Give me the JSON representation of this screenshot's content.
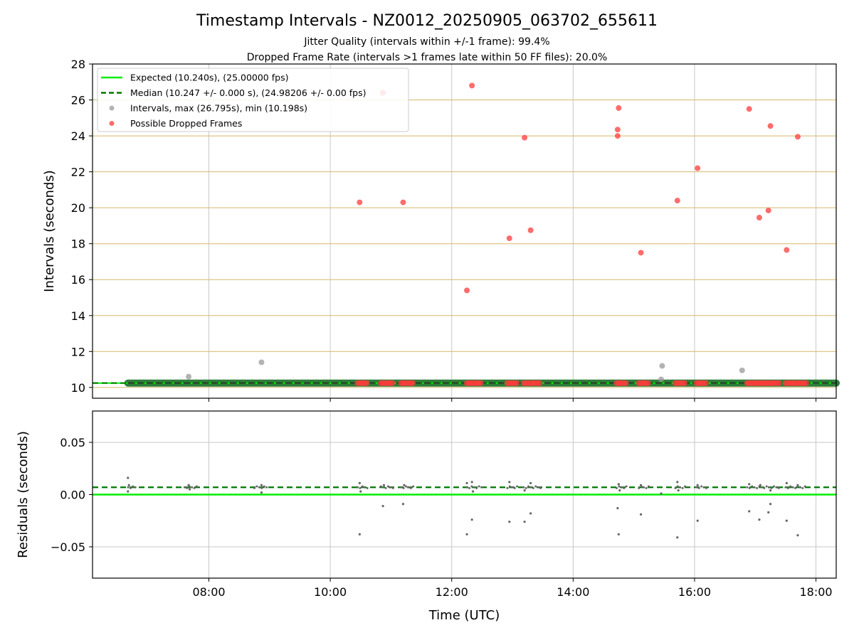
{
  "figure": {
    "title": "Timestamp Intervals - NZ0012_20250905_063702_655611",
    "subtitle_1": "Jitter Quality (intervals within +/-1 frame): 99.4%",
    "subtitle_2": "Dropped Frame Rate (intervals >1 frames late within 50 FF files): 20.0%"
  },
  "colors": {
    "expected": "#00ee00",
    "median": "#007700",
    "intervals": "#999999",
    "dropped": "#ff3b3b",
    "hgrid_top": "#d8b86a",
    "grid": "#c8c8c8",
    "residual_points": "#666666",
    "thick_band": "#2e7d3a"
  },
  "chart_data": [
    {
      "type": "scatter",
      "panel": "intervals",
      "ylabel": "Intervals (seconds)",
      "xlabel": "",
      "xlim": [
        "06:05",
        "18:20"
      ],
      "ylim": [
        9.4,
        28
      ],
      "x_ticks": [
        "08:00",
        "10:00",
        "12:00",
        "14:00",
        "16:00",
        "18:00"
      ],
      "y_ticks": [
        "10",
        "12",
        "14",
        "16",
        "18",
        "20",
        "22",
        "24",
        "26",
        "28"
      ],
      "grid": true,
      "legend_position": "top-left",
      "legend": [
        {
          "label": "Expected (10.240s), (25.00000 fps)",
          "style": "solid-line",
          "color_key": "expected"
        },
        {
          "label": "Median (10.247 +/- 0.000 s), (24.98206 +/- 0.00 fps)",
          "style": "dashed-line",
          "color_key": "median"
        },
        {
          "label": "Intervals, max (26.795s), min (10.198s)",
          "style": "marker",
          "color_key": "intervals"
        },
        {
          "label": "Possible Dropped Frames",
          "style": "marker",
          "color_key": "dropped"
        }
      ],
      "expected_value": 10.24,
      "median_value": 10.247,
      "baseline_span": [
        "06:40",
        "18:20"
      ],
      "intervals_outliers": [
        {
          "x": "07:40",
          "y": 10.6
        },
        {
          "x": "08:52",
          "y": 11.4
        },
        {
          "x": "15:28",
          "y": 11.2
        },
        {
          "x": "15:27",
          "y": 10.45
        },
        {
          "x": "16:47",
          "y": 10.95
        }
      ],
      "dropped_frames": [
        {
          "x": "10:29",
          "y": 20.3
        },
        {
          "x": "10:52",
          "y": 26.4
        },
        {
          "x": "11:12",
          "y": 20.3
        },
        {
          "x": "12:15",
          "y": 15.4
        },
        {
          "x": "12:20",
          "y": 26.8
        },
        {
          "x": "12:57",
          "y": 18.3
        },
        {
          "x": "13:12",
          "y": 23.9
        },
        {
          "x": "13:18",
          "y": 18.75
        },
        {
          "x": "14:44",
          "y": 24.35
        },
        {
          "x": "14:44",
          "y": 24.0
        },
        {
          "x": "14:45",
          "y": 25.55
        },
        {
          "x": "15:07",
          "y": 17.5
        },
        {
          "x": "15:43",
          "y": 20.4
        },
        {
          "x": "16:03",
          "y": 22.2
        },
        {
          "x": "16:54",
          "y": 25.5
        },
        {
          "x": "17:04",
          "y": 19.45
        },
        {
          "x": "17:13",
          "y": 19.85
        },
        {
          "x": "17:15",
          "y": 24.55
        },
        {
          "x": "17:31",
          "y": 17.65
        },
        {
          "x": "17:42",
          "y": 23.95
        }
      ],
      "dropped_frame_clusters_at_baseline": [
        {
          "start": "10:27",
          "end": "10:38"
        },
        {
          "start": "10:50",
          "end": "11:03"
        },
        {
          "start": "11:10",
          "end": "11:22"
        },
        {
          "start": "12:15",
          "end": "12:30"
        },
        {
          "start": "12:55",
          "end": "13:06"
        },
        {
          "start": "13:11",
          "end": "13:28"
        },
        {
          "start": "14:43",
          "end": "14:54"
        },
        {
          "start": "15:05",
          "end": "15:16"
        },
        {
          "start": "15:41",
          "end": "15:52"
        },
        {
          "start": "16:02",
          "end": "16:13"
        },
        {
          "start": "16:52",
          "end": "17:25"
        },
        {
          "start": "17:30",
          "end": "17:51"
        }
      ]
    },
    {
      "type": "scatter",
      "panel": "residuals",
      "ylabel": "Residuals (seconds)",
      "xlabel": "Time (UTC)",
      "xlim": [
        "06:05",
        "18:20"
      ],
      "ylim": [
        -0.08,
        0.08
      ],
      "x_ticks": [
        "08:00",
        "10:00",
        "12:00",
        "14:00",
        "16:00",
        "18:00"
      ],
      "y_ticks": [
        "0.05",
        "0.00",
        "−0.05"
      ],
      "y_tick_values": [
        0.05,
        0.0,
        -0.05
      ],
      "grid": true,
      "expected_value": 0.0,
      "median_value": 0.007,
      "points": [
        {
          "x": "06:40",
          "y": 0.016
        },
        {
          "x": "06:40",
          "y": 0.003
        },
        {
          "x": "06:41",
          "y": 0.009
        },
        {
          "x": "07:40",
          "y": 0.009
        },
        {
          "x": "07:41",
          "y": 0.005
        },
        {
          "x": "08:52",
          "y": 0.002
        },
        {
          "x": "08:52",
          "y": 0.009
        },
        {
          "x": "10:29",
          "y": -0.038
        },
        {
          "x": "10:29",
          "y": 0.011
        },
        {
          "x": "10:30",
          "y": 0.003
        },
        {
          "x": "10:52",
          "y": -0.011
        },
        {
          "x": "10:53",
          "y": 0.009
        },
        {
          "x": "11:12",
          "y": -0.009
        },
        {
          "x": "11:13",
          "y": 0.009
        },
        {
          "x": "12:15",
          "y": -0.038
        },
        {
          "x": "12:15",
          "y": 0.011
        },
        {
          "x": "12:20",
          "y": -0.024
        },
        {
          "x": "12:20",
          "y": 0.012
        },
        {
          "x": "12:21",
          "y": 0.003
        },
        {
          "x": "12:57",
          "y": -0.026
        },
        {
          "x": "12:57",
          "y": 0.012
        },
        {
          "x": "13:12",
          "y": -0.026
        },
        {
          "x": "13:12",
          "y": 0.004
        },
        {
          "x": "13:18",
          "y": -0.018
        },
        {
          "x": "13:18",
          "y": 0.011
        },
        {
          "x": "14:44",
          "y": -0.013
        },
        {
          "x": "14:45",
          "y": -0.038
        },
        {
          "x": "14:45",
          "y": 0.01
        },
        {
          "x": "14:46",
          "y": 0.004
        },
        {
          "x": "15:07",
          "y": -0.019
        },
        {
          "x": "15:07",
          "y": 0.009
        },
        {
          "x": "15:27",
          "y": 0.001
        },
        {
          "x": "15:43",
          "y": -0.041
        },
        {
          "x": "15:43",
          "y": 0.012
        },
        {
          "x": "15:44",
          "y": 0.004
        },
        {
          "x": "16:03",
          "y": -0.025
        },
        {
          "x": "16:03",
          "y": 0.009
        },
        {
          "x": "16:54",
          "y": -0.016
        },
        {
          "x": "16:54",
          "y": 0.01
        },
        {
          "x": "17:04",
          "y": -0.024
        },
        {
          "x": "17:05",
          "y": 0.009
        },
        {
          "x": "17:13",
          "y": -0.017
        },
        {
          "x": "17:15",
          "y": -0.009
        },
        {
          "x": "17:15",
          "y": 0.004
        },
        {
          "x": "17:31",
          "y": -0.025
        },
        {
          "x": "17:31",
          "y": 0.011
        },
        {
          "x": "17:42",
          "y": -0.039
        },
        {
          "x": "17:42",
          "y": 0.009
        }
      ]
    }
  ]
}
